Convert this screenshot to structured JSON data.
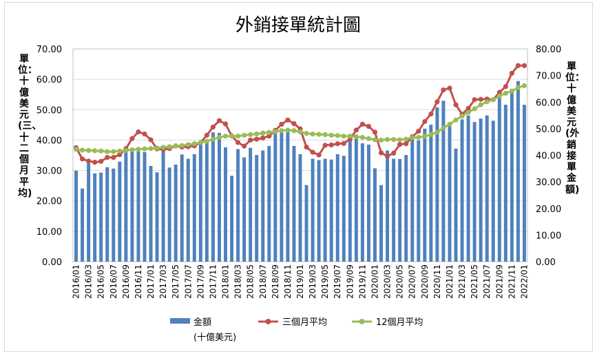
{
  "chart_data": {
    "type": "bar",
    "title": "外銷接單統計圖",
    "ylabel_left": "單位：十億美元(三、十二個月平均)",
    "ylabel_right": "單位：十億美元(外銷接單金額)",
    "left_axis": {
      "ylim": [
        0,
        70
      ],
      "ticks": [
        "0.00",
        "10.00",
        "20.00",
        "30.00",
        "40.00",
        "50.00",
        "60.00",
        "70.00"
      ]
    },
    "right_axis": {
      "ylim": [
        0,
        80
      ],
      "ticks": [
        "0.00",
        "10.00",
        "20.00",
        "30.00",
        "40.00",
        "50.00",
        "60.00",
        "70.00",
        "80.00"
      ]
    },
    "grid": true,
    "legend_position": "bottom",
    "categories": [
      "2016/01",
      "2016/02",
      "2016/03",
      "2016/04",
      "2016/05",
      "2016/06",
      "2016/07",
      "2016/08",
      "2016/09",
      "2016/10",
      "2016/11",
      "2016/12",
      "2017/01",
      "2017/02",
      "2017/03",
      "2017/04",
      "2017/05",
      "2017/06",
      "2017/07",
      "2017/08",
      "2017/09",
      "2017/10",
      "2017/11",
      "2017/12",
      "2018/01",
      "2018/02",
      "2018/03",
      "2018/04",
      "2018/05",
      "2018/06",
      "2018/07",
      "2018/08",
      "2018/09",
      "2018/10",
      "2018/11",
      "2018/12",
      "2019/01",
      "2019/02",
      "2019/03",
      "2019/04",
      "2019/05",
      "2019/06",
      "2019/07",
      "2019/08",
      "2019/09",
      "2019/10",
      "2019/11",
      "2019/12",
      "2020/01",
      "2020/02",
      "2020/03",
      "2020/04",
      "2020/05",
      "2020/06",
      "2020/07",
      "2020/08",
      "2020/09",
      "2020/10",
      "2020/11",
      "2020/12",
      "2021/01",
      "2021/02",
      "2021/03",
      "2021/04",
      "2021/05",
      "2021/06",
      "2021/07",
      "2021/08",
      "2021/09",
      "2021/10",
      "2021/11",
      "2021/12",
      "2022/01"
    ],
    "tick_labels": [
      "2016/01",
      "2016/03",
      "2016/05",
      "2016/07",
      "2016/09",
      "2016/11",
      "2017/01",
      "2017/03",
      "2017/05",
      "2017/07",
      "2017/09",
      "2017/11",
      "2018/01",
      "2018/03",
      "2018/05",
      "2018/07",
      "2018/09",
      "2018/11",
      "2019/01",
      "2019/03",
      "2019/05",
      "2019/07",
      "2019/09",
      "2019/11",
      "2020/01",
      "2020/03",
      "2020/05",
      "2020/07",
      "2020/09",
      "2020/11",
      "2021/01",
      "2021/03",
      "2021/05",
      "2021/07",
      "2021/09",
      "2021/11",
      "2022/01"
    ],
    "series": [
      {
        "name": "金額",
        "name_sub": "(十億美元)",
        "type": "bar",
        "axis": "right",
        "color": "#4f81bd",
        "values": [
          34.2,
          27.5,
          37.0,
          33.2,
          33.5,
          35.5,
          35.0,
          37.6,
          41.2,
          42.8,
          41.5,
          41.2,
          36.0,
          33.6,
          42.5,
          35.4,
          36.5,
          40.3,
          38.7,
          40.4,
          45.0,
          46.0,
          48.6,
          48.4,
          43.0,
          32.3,
          42.3,
          39.2,
          42.8,
          40.1,
          41.8,
          43.5,
          48.2,
          50.0,
          48.8,
          43.5,
          40.4,
          28.8,
          38.7,
          38.2,
          38.7,
          38.4,
          40.4,
          39.8,
          46.0,
          47.0,
          44.5,
          44.0,
          35.1,
          28.8,
          41.8,
          38.7,
          38.6,
          40.1,
          46.6,
          45.6,
          50.0,
          51.5,
          58.0,
          60.5,
          52.0,
          42.5,
          53.5,
          55.0,
          52.5,
          53.8,
          55.0,
          53.0,
          62.0,
          59.0,
          65.0,
          67.9,
          59.0
        ]
      },
      {
        "name": "三個月平均",
        "type": "line",
        "axis": "left",
        "color": "#c0504d",
        "values": [
          37.5,
          33.8,
          33.1,
          32.7,
          33.0,
          34.3,
          34.3,
          35.2,
          37.2,
          40.5,
          42.7,
          42.0,
          40.1,
          37.1,
          36.9,
          37.2,
          38.1,
          37.7,
          37.8,
          38.1,
          39.2,
          41.6,
          44.3,
          46.4,
          45.3,
          41.4,
          39.2,
          38.0,
          40.0,
          40.3,
          40.7,
          41.3,
          43.2,
          45.2,
          46.6,
          45.4,
          43.7,
          37.7,
          36.0,
          35.1,
          38.3,
          38.4,
          38.8,
          38.9,
          40.3,
          43.3,
          45.2,
          44.5,
          42.6,
          35.8,
          34.7,
          35.7,
          38.6,
          38.8,
          41.1,
          42.9,
          46.1,
          48.6,
          52.6,
          56.5,
          57.1,
          51.6,
          48.5,
          50.4,
          53.3,
          53.4,
          53.5,
          53.3,
          55.7,
          57.6,
          62.0,
          64.5,
          64.5
        ]
      },
      {
        "name": "12個月平均",
        "type": "line",
        "axis": "left",
        "color": "#9bbb59",
        "values": [
          37.0,
          36.7,
          36.6,
          36.5,
          36.4,
          36.2,
          36.2,
          36.4,
          36.6,
          36.8,
          37.0,
          37.1,
          37.2,
          37.4,
          37.6,
          37.8,
          38.0,
          38.2,
          38.5,
          38.8,
          39.2,
          39.6,
          40.3,
          40.9,
          41.3,
          41.3,
          41.3,
          41.6,
          41.8,
          42.0,
          42.3,
          42.5,
          42.8,
          43.1,
          43.3,
          43.1,
          42.7,
          42.2,
          42.0,
          41.9,
          41.8,
          41.6,
          41.5,
          41.3,
          41.3,
          41.1,
          40.9,
          40.5,
          40.1,
          40.0,
          40.2,
          40.2,
          40.1,
          40.3,
          40.8,
          40.9,
          41.2,
          41.8,
          42.6,
          44.0,
          45.2,
          46.6,
          47.9,
          49.1,
          50.3,
          51.6,
          52.6,
          53.3,
          54.5,
          55.4,
          56.1,
          57.3,
          57.9
        ]
      }
    ]
  }
}
